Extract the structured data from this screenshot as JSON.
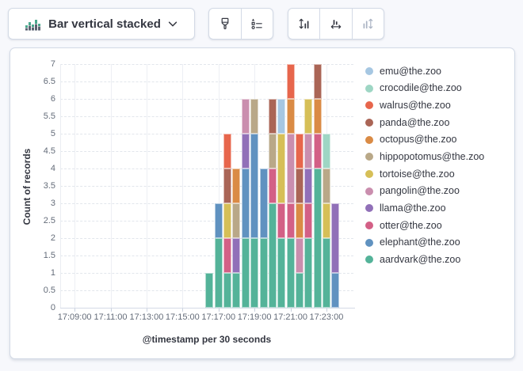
{
  "page": {
    "background": "#F7F8FC"
  },
  "toolbar": {
    "chart_switcher": {
      "label": "Bar vertical stacked",
      "icon": "bar-vertical-stacked-icon",
      "caret_icon": "chevron-down-icon"
    },
    "groups": [
      {
        "name": "style-group",
        "buttons": [
          {
            "name": "visual-options-button",
            "icon": "brush-icon",
            "disabled": false
          },
          {
            "name": "legend-button",
            "icon": "legend-icon",
            "disabled": false
          }
        ]
      },
      {
        "name": "axes-group",
        "buttons": [
          {
            "name": "left-axis-button",
            "icon": "axis-left-icon",
            "disabled": false
          },
          {
            "name": "bottom-axis-button",
            "icon": "axis-bottom-icon",
            "disabled": false
          },
          {
            "name": "right-axis-button",
            "icon": "axis-right-icon",
            "disabled": true
          }
        ]
      }
    ]
  },
  "chart_data": {
    "type": "bar",
    "stacked": true,
    "orientation": "vertical",
    "title": "",
    "ylabel": "Count of records",
    "xlabel": "@timestamp per 30 seconds",
    "ylim": [
      0,
      7
    ],
    "y_tick_step": 0.5,
    "grid": true,
    "legend_position": "right",
    "x_domain_minutes": [
      8.2,
      24.5
    ],
    "x_ticks": [
      {
        "label": "17:09:00",
        "minute": 9
      },
      {
        "label": "17:11:00",
        "minute": 11
      },
      {
        "label": "17:13:00",
        "minute": 13
      },
      {
        "label": "17:15:00",
        "minute": 15
      },
      {
        "label": "17:17:00",
        "minute": 17
      },
      {
        "label": "17:19:00",
        "minute": 19
      },
      {
        "label": "17:21:00",
        "minute": 21
      },
      {
        "label": "17:23:00",
        "minute": 23
      }
    ],
    "categories": [
      {
        "time": "17:16:30",
        "minute": 16.5
      },
      {
        "time": "17:17:00",
        "minute": 17.0
      },
      {
        "time": "17:17:30",
        "minute": 17.5
      },
      {
        "time": "17:18:00",
        "minute": 18.0
      },
      {
        "time": "17:18:30",
        "minute": 18.5
      },
      {
        "time": "17:19:00",
        "minute": 19.0
      },
      {
        "time": "17:19:30",
        "minute": 19.5
      },
      {
        "time": "17:20:00",
        "minute": 20.0
      },
      {
        "time": "17:20:30",
        "minute": 20.5
      },
      {
        "time": "17:21:00",
        "minute": 21.0
      },
      {
        "time": "17:21:30",
        "minute": 21.5
      },
      {
        "time": "17:22:00",
        "minute": 22.0
      },
      {
        "time": "17:22:30",
        "minute": 22.5
      },
      {
        "time": "17:23:00",
        "minute": 23.0
      },
      {
        "time": "17:23:30",
        "minute": 23.5
      }
    ],
    "series": [
      {
        "name": "aardvark@the.zoo",
        "color": "#54B399",
        "values": [
          1,
          2,
          1,
          1,
          2,
          2,
          2,
          3,
          2,
          2,
          1,
          2,
          4,
          2,
          0
        ]
      },
      {
        "name": "elephant@the.zoo",
        "color": "#6092C0",
        "values": [
          0,
          1,
          0,
          0,
          2,
          3,
          2,
          0,
          0,
          0,
          0,
          0,
          0,
          0,
          1
        ]
      },
      {
        "name": "otter@the.zoo",
        "color": "#D36086",
        "values": [
          0,
          0,
          1,
          0,
          0,
          0,
          0,
          1,
          1,
          1,
          0,
          1,
          1,
          0,
          0
        ]
      },
      {
        "name": "llama@the.zoo",
        "color": "#9170B8",
        "values": [
          0,
          0,
          0,
          1,
          1,
          0,
          0,
          0,
          0,
          0,
          0,
          1,
          0,
          0,
          2
        ]
      },
      {
        "name": "pangolin@the.zoo",
        "color": "#CA8EAE",
        "values": [
          0,
          0,
          0,
          0,
          1,
          0,
          0,
          0,
          0,
          2,
          1,
          1,
          0,
          0,
          0
        ]
      },
      {
        "name": "tortoise@the.zoo",
        "color": "#D6BF57",
        "values": [
          0,
          0,
          1,
          0,
          0,
          0,
          0,
          0,
          2,
          0,
          0,
          1,
          0,
          1,
          0
        ]
      },
      {
        "name": "hippopotomus@the.zoo",
        "color": "#B9A888",
        "values": [
          0,
          0,
          0,
          1,
          0,
          1,
          0,
          1,
          0,
          0,
          0,
          0,
          0,
          1,
          0
        ]
      },
      {
        "name": "octopus@the.zoo",
        "color": "#DA8B45",
        "values": [
          0,
          0,
          0,
          1,
          0,
          0,
          0,
          0,
          0,
          1,
          1,
          0,
          1,
          0,
          0
        ]
      },
      {
        "name": "panda@the.zoo",
        "color": "#AA6556",
        "values": [
          0,
          0,
          1,
          0,
          0,
          0,
          0,
          1,
          0,
          0,
          1,
          0,
          1,
          0,
          0
        ]
      },
      {
        "name": "walrus@the.zoo",
        "color": "#E7664C",
        "values": [
          0,
          0,
          1,
          0,
          0,
          0,
          0,
          0,
          0,
          1,
          1,
          0,
          0,
          0,
          0
        ]
      },
      {
        "name": "crocodile@the.zoo",
        "color": "#9ED6C4",
        "values": [
          0,
          0,
          0,
          0,
          0,
          0,
          0,
          0,
          0,
          0,
          0,
          0,
          0,
          1,
          0
        ]
      },
      {
        "name": "emu@the.zoo",
        "color": "#A6C7E2",
        "values": [
          0,
          0,
          0,
          0,
          0,
          0,
          0,
          0,
          1,
          0,
          0,
          0,
          0,
          0,
          0
        ]
      }
    ]
  }
}
